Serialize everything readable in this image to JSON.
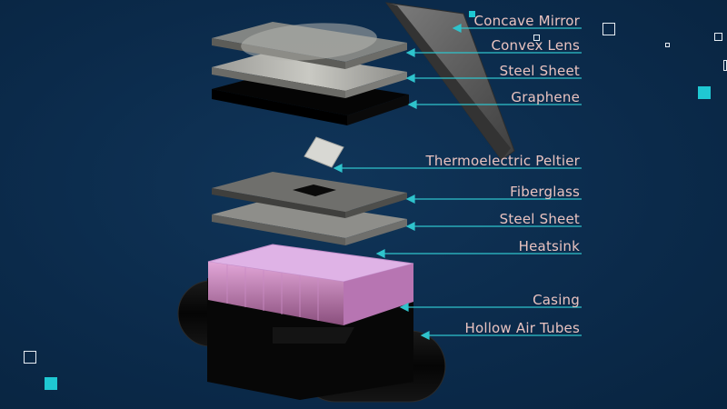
{
  "colors": {
    "background": "#0b2a4a",
    "label_text": "#e9c3c0",
    "leader_line": "#2fc3cc",
    "accent_square": "#1fc8d2",
    "outline_square": "#e8eef4"
  },
  "labels": [
    {
      "id": "concave-mirror",
      "text": "Concave Mirror"
    },
    {
      "id": "convex-lens",
      "text": "Convex Lens"
    },
    {
      "id": "steel-sheet-top",
      "text": "Steel Sheet"
    },
    {
      "id": "graphene",
      "text": "Graphene"
    },
    {
      "id": "thermoelectric-peltier",
      "text": "Thermoelectric Peltier"
    },
    {
      "id": "fiberglass",
      "text": "Fiberglass"
    },
    {
      "id": "steel-sheet-bottom",
      "text": "Steel Sheet"
    },
    {
      "id": "heatsink",
      "text": "Heatsink"
    },
    {
      "id": "casing",
      "text": "Casing"
    },
    {
      "id": "hollow-air-tubes",
      "text": "Hollow Air Tubes"
    }
  ]
}
